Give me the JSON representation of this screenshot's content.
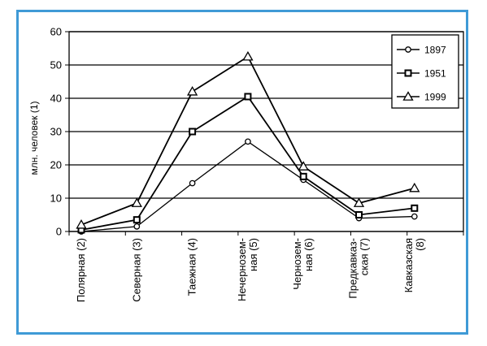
{
  "chart_data": {
    "type": "line",
    "title": "",
    "ylabel": "млн. человек (1)",
    "xlabel": "",
    "ylim": [
      0,
      60
    ],
    "yticks": [
      0,
      10,
      20,
      30,
      40,
      50,
      60
    ],
    "grid": true,
    "legend_position": "top-right",
    "categories": [
      [
        "Полярная (2)"
      ],
      [
        "Северная (3)"
      ],
      [
        "Таежная (4)"
      ],
      [
        "Нечерноземная (5)",
        "Нечернозем-",
        "ная (5)"
      ],
      [
        "Черноземная (6)",
        "Чернозем-",
        "ная (6)"
      ],
      [
        "Предкавказская (7)",
        "Предкавказ-",
        "ская (7)"
      ],
      [
        "Кавказская (8)",
        "Кавказская",
        "(8)"
      ]
    ],
    "series": [
      {
        "name": "1897",
        "marker": "circle",
        "values": [
          0,
          1.5,
          14.5,
          27,
          15.5,
          4,
          4.5
        ]
      },
      {
        "name": "1951",
        "marker": "square",
        "values": [
          0.5,
          3.5,
          30,
          40.5,
          16.5,
          5,
          7
        ]
      },
      {
        "name": "1999",
        "marker": "triangle",
        "values": [
          2,
          8.5,
          42,
          52.5,
          19.5,
          8.5,
          13
        ]
      }
    ]
  },
  "colors": {
    "frame": "#3f9ad6",
    "line": "#000000",
    "grid": "#000000"
  }
}
